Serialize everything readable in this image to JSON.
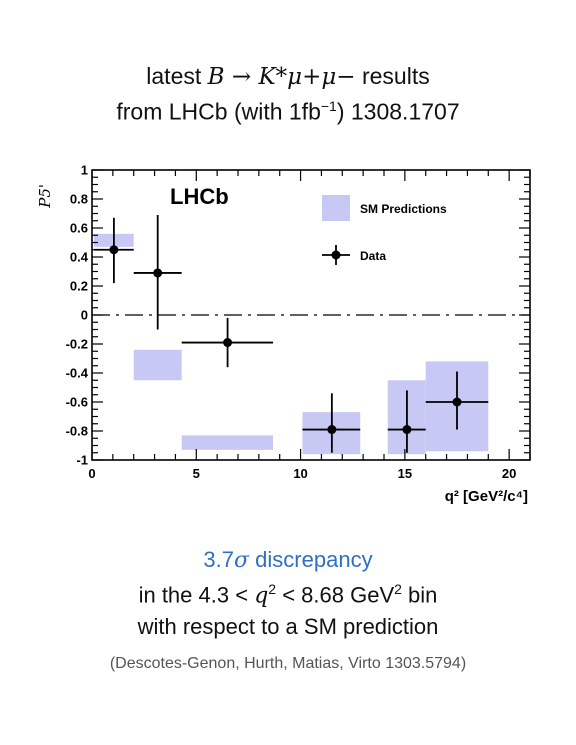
{
  "header": {
    "line1_pre": "latest",
    "line1_formula": "B → K*μ+μ−",
    "line1_post": "results",
    "line2_pre": "from LHCb (with 1fb",
    "line2_sup": "−1",
    "line2_post": ") 1308.1707"
  },
  "chart_data": {
    "type": "scatter",
    "experiment_label": "LHCb",
    "ylabel": "P5'",
    "xlabel": "q² [GeV²/c⁴]",
    "xlim": [
      0,
      21
    ],
    "ylim": [
      -1,
      1
    ],
    "xticks": [
      0,
      5,
      10,
      15,
      20
    ],
    "yticks": [
      1,
      0.8,
      0.6,
      0.4,
      0.2,
      0,
      -0.2,
      -0.4,
      -0.6,
      -0.8,
      -1
    ],
    "zero_line": "dash-dot",
    "legend": {
      "placement": "top-right",
      "entries": [
        "SM Predictions",
        "Data"
      ]
    },
    "colors": {
      "sm_band": "#c8c8f5",
      "data": "#000000"
    },
    "sm_predictions": [
      {
        "x_low": 0.1,
        "x_high": 2.0,
        "y_low": 0.47,
        "y_high": 0.56
      },
      {
        "x_low": 2.0,
        "x_high": 4.3,
        "y_low": -0.45,
        "y_high": -0.24
      },
      {
        "x_low": 4.3,
        "x_high": 8.68,
        "y_low": -0.93,
        "y_high": -0.83
      },
      {
        "x_low": 10.09,
        "x_high": 12.86,
        "y_low": -0.96,
        "y_high": -0.67
      },
      {
        "x_low": 14.18,
        "x_high": 16.0,
        "y_low": -0.96,
        "y_high": -0.45
      },
      {
        "x_low": 16.0,
        "x_high": 19.0,
        "y_low": -0.94,
        "y_high": -0.32
      }
    ],
    "data_points": [
      {
        "x": 1.05,
        "x_low": 0.1,
        "x_high": 2.0,
        "y": 0.45,
        "y_low": 0.22,
        "y_high": 0.67
      },
      {
        "x": 3.15,
        "x_low": 2.0,
        "x_high": 4.3,
        "y": 0.29,
        "y_low": -0.1,
        "y_high": 0.69
      },
      {
        "x": 6.5,
        "x_low": 4.3,
        "x_high": 8.68,
        "y": -0.19,
        "y_low": -0.36,
        "y_high": -0.02
      },
      {
        "x": 11.5,
        "x_low": 10.09,
        "x_high": 12.86,
        "y": -0.79,
        "y_low": -0.95,
        "y_high": -0.54
      },
      {
        "x": 15.1,
        "x_low": 14.18,
        "x_high": 16.0,
        "y": -0.79,
        "y_low": -0.95,
        "y_high": -0.52
      },
      {
        "x": 17.5,
        "x_low": 16.0,
        "x_high": 19.0,
        "y": -0.6,
        "y_low": -0.79,
        "y_high": -0.39
      }
    ]
  },
  "footer": {
    "discrepancy_num": "3.7",
    "discrepancy_sigma": "σ",
    "discrepancy_word": "discrepancy",
    "bin_pre": "in the 4.3 <",
    "bin_q": "q",
    "bin_sup": "2",
    "bin_mid": "< 8.68 GeV",
    "bin_sup2": "2",
    "bin_post": "bin",
    "respect": "with respect to a SM prediction",
    "citation": "(Descotes-Genon, Hurth, Matias, Virto 1303.5794)"
  }
}
